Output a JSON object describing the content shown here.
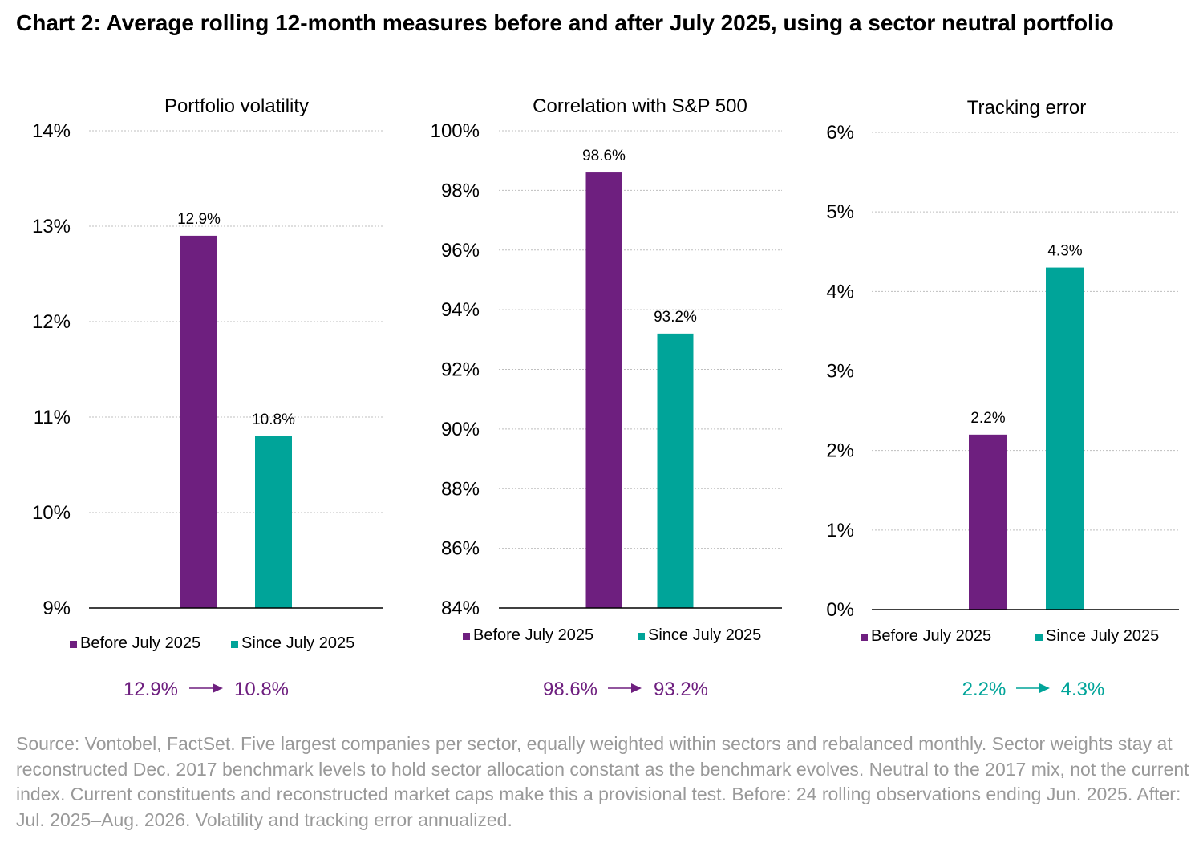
{
  "title": "Chart 2: Average rolling 12-month measures before and after July 2025, using a sector neutral portfolio",
  "colors": {
    "before": "#6e1f7f",
    "since": "#00a499",
    "grid": "#bfbfbf",
    "axis": "#000000",
    "source": "#999999"
  },
  "chart_data": [
    {
      "type": "bar",
      "title": "Portfolio volatility",
      "categories": [
        "Before July 2025",
        "Since July 2025"
      ],
      "values": [
        12.9,
        10.8
      ],
      "value_labels": [
        "12.9%",
        "10.8%"
      ],
      "ylim": [
        9,
        14
      ],
      "yticks": [
        9,
        10,
        11,
        12,
        13,
        14
      ],
      "ytick_labels": [
        "9%",
        "10%",
        "11%",
        "12%",
        "13%",
        "14%"
      ],
      "grid": true,
      "legend": [
        "Before July 2025",
        "Since July 2025"
      ],
      "legend_position": "bottom",
      "summary": {
        "from": "12.9%",
        "to": "10.8%",
        "color": "#6e1f7f"
      }
    },
    {
      "type": "bar",
      "title": "Correlation with S&P 500",
      "categories": [
        "Before July 2025",
        "Since July 2025"
      ],
      "values": [
        98.6,
        93.2
      ],
      "value_labels": [
        "98.6%",
        "93.2%"
      ],
      "ylim": [
        84,
        100
      ],
      "yticks": [
        84,
        86,
        88,
        90,
        92,
        94,
        96,
        98,
        100
      ],
      "ytick_labels": [
        "84%",
        "86%",
        "88%",
        "90%",
        "92%",
        "94%",
        "96%",
        "98%",
        "100%"
      ],
      "grid": true,
      "legend": [
        "Before July 2025",
        "Since July 2025"
      ],
      "legend_position": "bottom",
      "summary": {
        "from": "98.6%",
        "to": "93.2%",
        "color": "#6e1f7f"
      }
    },
    {
      "type": "bar",
      "title": "Tracking error",
      "categories": [
        "Before July 2025",
        "Since July 2025"
      ],
      "values": [
        2.2,
        4.3
      ],
      "value_labels": [
        "2.2%",
        "4.3%"
      ],
      "ylim": [
        0,
        6
      ],
      "yticks": [
        0,
        1,
        2,
        3,
        4,
        5,
        6
      ],
      "ytick_labels": [
        "0%",
        "1%",
        "2%",
        "3%",
        "4%",
        "5%",
        "6%"
      ],
      "grid": true,
      "legend": [
        "Before July 2025",
        "Since July 2025"
      ],
      "legend_position": "bottom",
      "summary": {
        "from": "2.2%",
        "to": "4.3%",
        "color": "#00a499"
      }
    }
  ],
  "source": "Source: Vontobel, FactSet. Five largest companies per sector, equally weighted within sectors and rebalanced monthly. Sector weights stay at reconstructed Dec. 2017 benchmark levels to hold sector allocation constant as the benchmark evolves. Neutral to the 2017 mix, not the current index. Current constituents and reconstructed market caps make this a provisional test. Before: 24 rolling observations ending Jun. 2025. After: Jul. 2025–Aug. 2026. Volatility and tracking error annualized."
}
